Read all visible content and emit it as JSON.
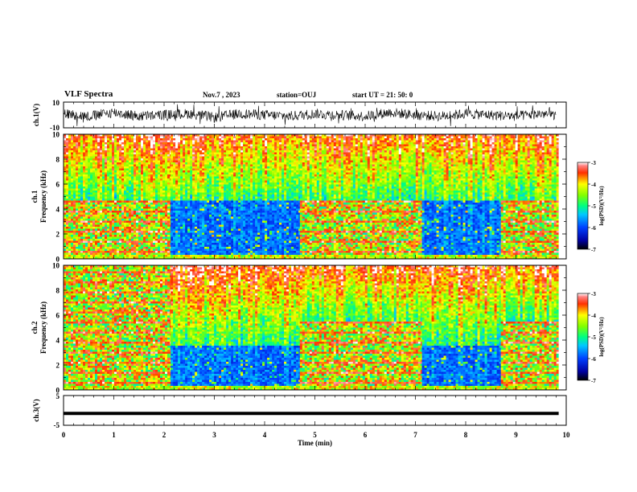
{
  "header": {
    "title": "VLF Spectra",
    "date": "Nov.7 , 2023",
    "station": "station=OUJ",
    "start": "start UT =  21: 50: 0"
  },
  "chart_data": [
    {
      "type": "line",
      "title": "",
      "ylabel": "ch.1(V)",
      "xlim": [
        0,
        10
      ],
      "ylim": [
        -10,
        10
      ],
      "yticks": [
        "10",
        "-10"
      ],
      "x": [
        0,
        0.5,
        1,
        1.5,
        2,
        2.5,
        3,
        3.5,
        4,
        4.5,
        5,
        5.5,
        6,
        6.5,
        7,
        7.5,
        8,
        8.5,
        9,
        9.5,
        9.8
      ],
      "values": [
        1,
        -1,
        2,
        -1,
        0,
        1,
        -2,
        1,
        0,
        -1,
        1,
        0,
        -1,
        2,
        0,
        -1,
        1,
        0,
        -1,
        1,
        0
      ],
      "note_envelope_amplitude": 4
    },
    {
      "type": "heatmap",
      "ylabel": "ch.1\nFrequency (kHz)",
      "xlim": [
        0,
        10
      ],
      "ylim": [
        0,
        10
      ],
      "yticks": [
        "0",
        "2",
        "4",
        "6",
        "8",
        "10"
      ],
      "data_end_min": 9.85,
      "segments": [
        {
          "x": [
            0,
            2.13
          ],
          "state": "bright",
          "band_top_khz": 4.7
        },
        {
          "x": [
            2.13,
            4.7
          ],
          "state": "dark",
          "band_top_khz": 4.7
        },
        {
          "x": [
            4.7,
            7.13
          ],
          "state": "bright",
          "band_top_khz": 4.7
        },
        {
          "x": [
            7.13,
            8.7
          ],
          "state": "dark",
          "band_top_khz": 4.7
        },
        {
          "x": [
            8.7,
            9.85
          ],
          "state": "bright",
          "band_top_khz": 4.7
        }
      ],
      "colorbar": {
        "label": "log(PSD)(V²/Hz)",
        "min": -7,
        "max": -3,
        "ticks": [
          "-3",
          "-4",
          "-5",
          "-6",
          "-7"
        ]
      }
    },
    {
      "type": "heatmap",
      "ylabel": "ch.2\nFrequency (kHz)",
      "xlim": [
        0,
        10
      ],
      "ylim": [
        0,
        10
      ],
      "yticks": [
        "0",
        "2",
        "4",
        "6",
        "8",
        "10"
      ],
      "data_end_min": 9.85,
      "segments": [
        {
          "x": [
            0,
            2.13
          ],
          "state": "bright",
          "band_top_khz": 10
        },
        {
          "x": [
            2.13,
            4.7
          ],
          "state": "dark",
          "band_top_khz": 3.6
        },
        {
          "x": [
            4.7,
            7.13
          ],
          "state": "bright",
          "band_top_khz": 5.5
        },
        {
          "x": [
            7.13,
            8.7
          ],
          "state": "dark",
          "band_top_khz": 3.6
        },
        {
          "x": [
            8.7,
            9.85
          ],
          "state": "bright",
          "band_top_khz": 5.5
        }
      ],
      "colorbar": {
        "label": "log(PSD)(V²/Hz)",
        "min": -7,
        "max": -3,
        "ticks": [
          "-3",
          "-4",
          "-5",
          "-6",
          "-7"
        ]
      }
    },
    {
      "type": "line",
      "ylabel": "ch.3(V)",
      "xlim": [
        0,
        10
      ],
      "ylim": [
        -5,
        5
      ],
      "yticks": [
        "5",
        "-5"
      ],
      "x": [
        0,
        9.85
      ],
      "values": [
        -1,
        -1
      ]
    }
  ],
  "xaxis": {
    "label": "Time (min)",
    "ticks": [
      "0",
      "1",
      "2",
      "3",
      "4",
      "5",
      "6",
      "7",
      "8",
      "9",
      "10"
    ]
  },
  "colors": {
    "trace": "#000000",
    "axis": "#000000"
  }
}
